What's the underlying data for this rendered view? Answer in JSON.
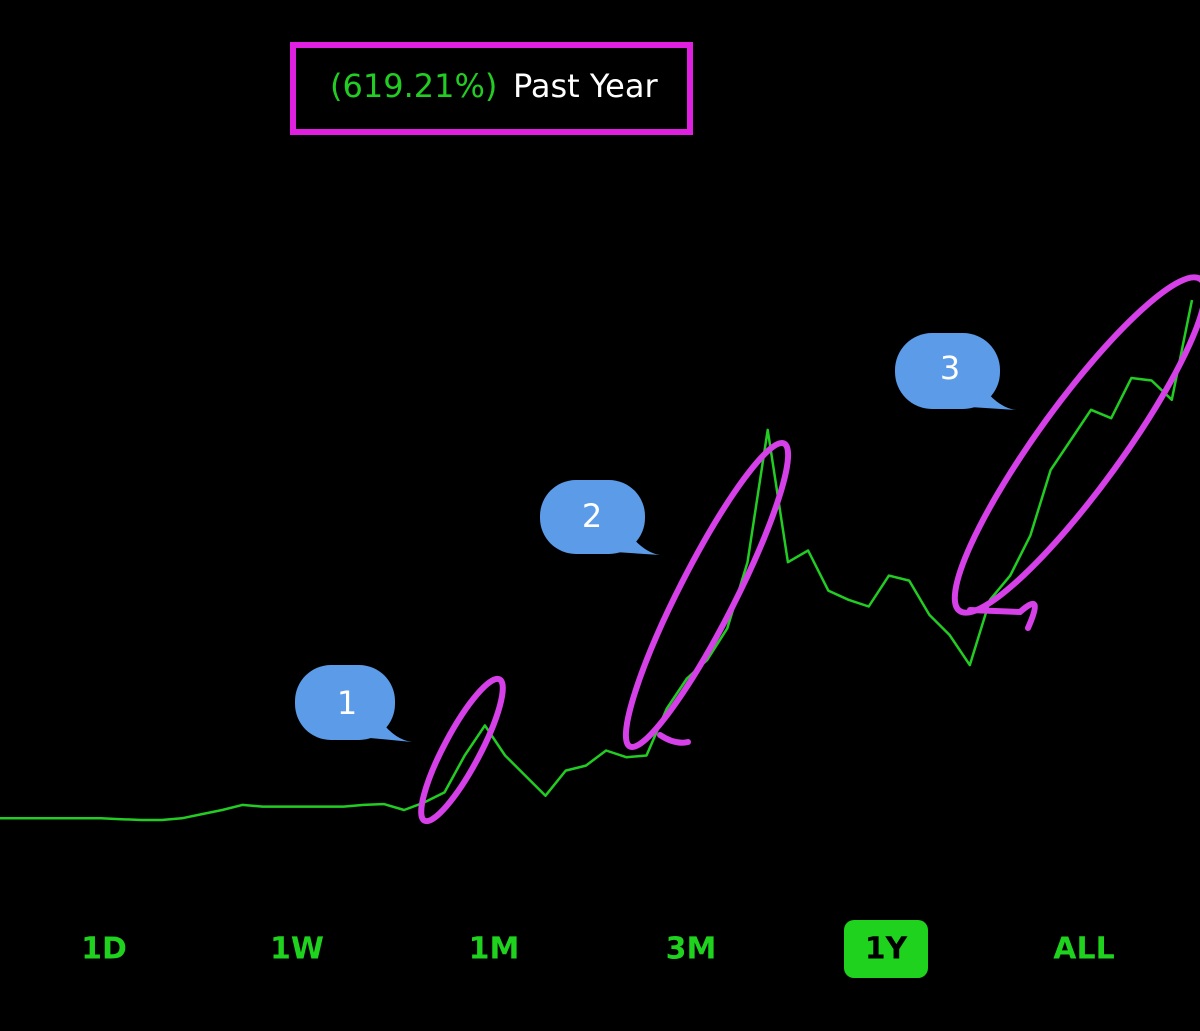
{
  "header": {
    "change": "(619.21%)",
    "period": "Past Year"
  },
  "chart_data": {
    "type": "line",
    "color": "#22cc22",
    "values": [
      0,
      0,
      0,
      0,
      0,
      0,
      -1,
      -2,
      -2,
      0,
      5,
      10,
      16,
      14,
      14,
      14,
      14,
      14,
      16,
      17,
      10,
      19,
      31,
      75,
      111,
      75,
      51,
      27,
      57,
      63,
      81,
      73,
      75,
      131,
      167,
      189,
      227,
      306,
      464,
      306,
      320,
      272,
      261,
      253,
      290,
      284,
      243,
      219,
      183,
      261,
      290,
      338,
      416,
      452,
      488,
      478,
      526,
      523,
      500,
      619.21
    ]
  },
  "annotations": [
    {
      "label": "1"
    },
    {
      "label": "2"
    },
    {
      "label": "3"
    }
  ],
  "ranges": {
    "options": [
      "1D",
      "1W",
      "1M",
      "3M",
      "1Y",
      "ALL"
    ],
    "selected": 4
  }
}
